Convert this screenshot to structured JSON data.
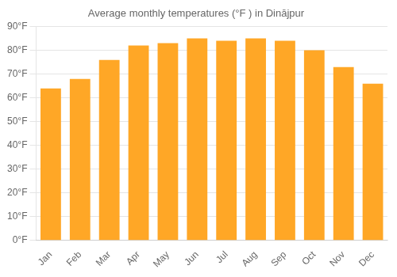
{
  "chart_data": {
    "type": "bar",
    "title": "Average monthly temperatures (°F ) in Dinājpur",
    "categories": [
      "Jan",
      "Feb",
      "Mar",
      "Apr",
      "May",
      "Jun",
      "Jul",
      "Aug",
      "Sep",
      "Oct",
      "Nov",
      "Dec"
    ],
    "values": [
      64,
      68,
      76,
      82,
      83,
      85,
      84,
      85,
      84,
      80,
      73,
      66
    ],
    "color": "#FFA726",
    "ylim": [
      0,
      90
    ],
    "yticks": [
      {
        "value": 0,
        "label": "0°F"
      },
      {
        "value": 10,
        "label": "10°F"
      },
      {
        "value": 20,
        "label": "20°F"
      },
      {
        "value": 30,
        "label": "30°F"
      },
      {
        "value": 40,
        "label": "40°F"
      },
      {
        "value": 50,
        "label": "50°F"
      },
      {
        "value": 60,
        "label": "60°F"
      },
      {
        "value": 70,
        "label": "70°F"
      },
      {
        "value": 80,
        "label": "80°F"
      },
      {
        "value": 90,
        "label": "90°F"
      }
    ],
    "grid": true
  }
}
